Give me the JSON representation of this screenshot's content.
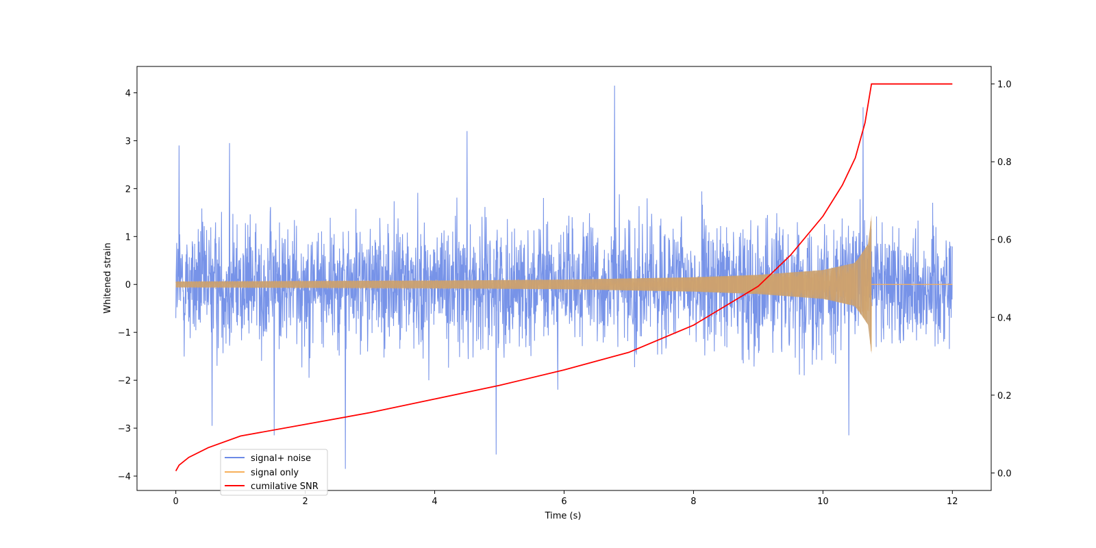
{
  "chart_data": {
    "type": "line",
    "title": "",
    "xlabel": "Time (s)",
    "ylabel": "Whitened strain",
    "y2label": "",
    "xlim": [
      -0.6,
      12.6
    ],
    "ylim": [
      -4.3,
      4.55
    ],
    "y2lim": [
      -0.045,
      1.045
    ],
    "xticks": [
      0,
      2,
      4,
      6,
      8,
      10,
      12
    ],
    "yticks": [
      -4,
      -3,
      -2,
      -1,
      0,
      1,
      2,
      3,
      4
    ],
    "y2ticks": [
      0.0,
      0.2,
      0.4,
      0.6,
      0.8,
      1.0
    ],
    "xtick_labels": [
      "0",
      "2",
      "4",
      "6",
      "8",
      "10",
      "12"
    ],
    "ytick_labels": [
      "−4",
      "−3",
      "−2",
      "−1",
      "0",
      "1",
      "2",
      "3",
      "4"
    ],
    "y2tick_labels": [
      "0.0",
      "0.2",
      "0.4",
      "0.6",
      "0.8",
      "1.0"
    ],
    "grid": false,
    "legend_position": "lower-left",
    "series": [
      {
        "name": "signal+ noise",
        "color": "#6b8ae6",
        "axis": "left",
        "kind": "noise-band",
        "x_range": [
          0,
          12
        ],
        "typical_range": [
          -1.5,
          1.5
        ],
        "peaks": [
          {
            "x": 6.78,
            "y": 4.15
          },
          {
            "x": 10.62,
            "y": 3.7
          },
          {
            "x": 4.5,
            "y": 3.2
          },
          {
            "x": 0.83,
            "y": 2.95
          },
          {
            "x": 0.05,
            "y": 2.9
          },
          {
            "x": 2.62,
            "y": -3.85
          },
          {
            "x": 4.95,
            "y": -3.55
          },
          {
            "x": 1.52,
            "y": -3.15
          },
          {
            "x": 10.4,
            "y": -3.15
          },
          {
            "x": 0.56,
            "y": -2.95
          }
        ]
      },
      {
        "name": "signal only",
        "color": "#f7b05a",
        "axis": "left",
        "kind": "chirp",
        "merger_time": 10.75,
        "envelope": [
          {
            "x": 0,
            "y": 0.06
          },
          {
            "x": 2,
            "y": 0.07
          },
          {
            "x": 4,
            "y": 0.08
          },
          {
            "x": 6,
            "y": 0.1
          },
          {
            "x": 8,
            "y": 0.15
          },
          {
            "x": 9,
            "y": 0.2
          },
          {
            "x": 10,
            "y": 0.3
          },
          {
            "x": 10.5,
            "y": 0.45
          },
          {
            "x": 10.7,
            "y": 0.85
          },
          {
            "x": 10.75,
            "y": 1.45
          }
        ],
        "after_merger": 0
      },
      {
        "name": "cumilative SNR",
        "color": "#ff0000",
        "axis": "right",
        "kind": "line",
        "x": [
          0,
          0.05,
          0.2,
          0.5,
          1,
          2,
          3,
          4,
          5,
          6,
          7,
          8,
          9,
          9.5,
          10,
          10.3,
          10.5,
          10.65,
          10.75,
          12
        ],
        "y": [
          0.005,
          0.02,
          0.04,
          0.065,
          0.095,
          0.125,
          0.155,
          0.19,
          0.225,
          0.265,
          0.31,
          0.38,
          0.48,
          0.56,
          0.66,
          0.74,
          0.81,
          0.9,
          1.0,
          1.0
        ]
      }
    ]
  }
}
